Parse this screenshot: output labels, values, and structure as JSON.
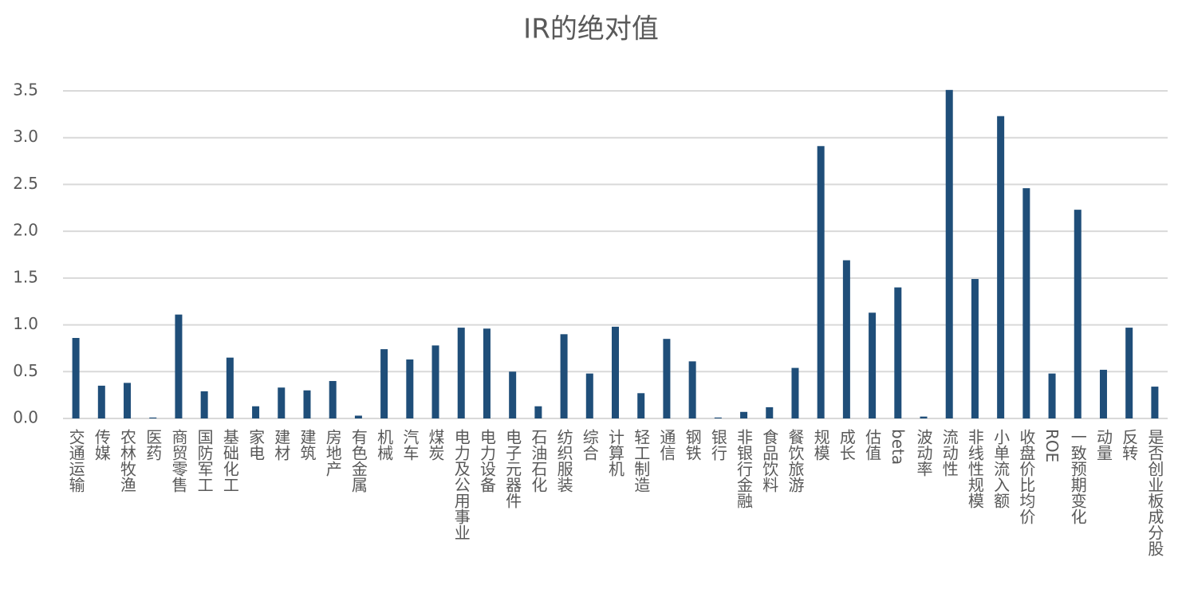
{
  "chart_data": {
    "type": "bar",
    "title": "IR的绝对值",
    "categories": [
      "交通运输",
      "传媒",
      "农林牧渔",
      "医药",
      "商贸零售",
      "国防军工",
      "基础化工",
      "家电",
      "建材",
      "建筑",
      "房地产",
      "有色金属",
      "机械",
      "汽车",
      "煤炭",
      "电力及公用事业",
      "电力设备",
      "电子元器件",
      "石油石化",
      "纺织服装",
      "综合",
      "计算机",
      "轻工制造",
      "通信",
      "钢铁",
      "银行",
      "非银行金融",
      "食品饮料",
      "餐饮旅游",
      "规模",
      "成长",
      "估值",
      "beta",
      "波动率",
      "流动性",
      "非线性规模",
      "小单流入额",
      "收盘价比均价",
      "ROE",
      "一致预期变化",
      "动量",
      "反转",
      "是否创业板成分股"
    ],
    "values": [
      0.86,
      0.35,
      0.38,
      0.01,
      1.11,
      0.29,
      0.65,
      0.13,
      0.33,
      0.3,
      0.4,
      0.03,
      0.74,
      0.63,
      0.78,
      0.97,
      0.96,
      0.5,
      0.13,
      0.9,
      0.48,
      0.98,
      0.27,
      0.85,
      0.61,
      0.01,
      0.07,
      0.12,
      0.54,
      2.91,
      1.69,
      1.13,
      1.4,
      0.02,
      3.51,
      1.49,
      3.23,
      2.46,
      0.48,
      2.23,
      0.52,
      0.97,
      0.34
    ],
    "color": "#1f4e79",
    "ylim": [
      0,
      3.5
    ],
    "yticks": [
      {
        "value": 0,
        "label": "0.0"
      },
      {
        "value": 0.5,
        "label": "0.5"
      },
      {
        "value": 1,
        "label": "1.0"
      },
      {
        "value": 1.5,
        "label": "1.5"
      },
      {
        "value": 2,
        "label": "2.0"
      },
      {
        "value": 2.5,
        "label": "2.5"
      },
      {
        "value": 3,
        "label": "3.0"
      },
      {
        "value": 3.5,
        "label": "3.5"
      }
    ],
    "grid": true
  }
}
